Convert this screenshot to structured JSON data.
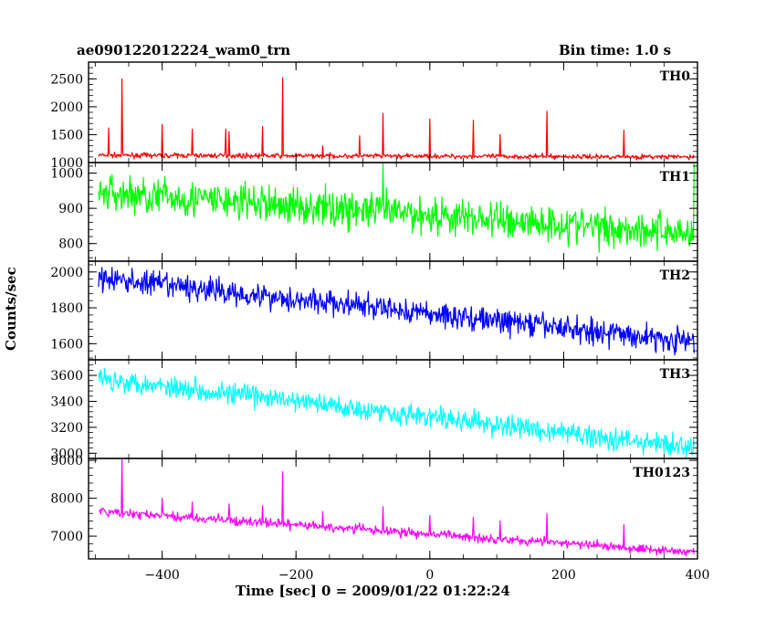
{
  "header": {
    "title": "ae090122012224_wam0_trn",
    "bin_time": "Bin time: 1.0 s"
  },
  "axes": {
    "ylabel": "Counts/sec",
    "xlabel": "Time [sec] 0 = 2009/01/22 01:22:24"
  },
  "chart_data": {
    "type": "line",
    "x_range": [
      -510,
      400
    ],
    "x_ticks": [
      -400,
      -200,
      0,
      200,
      400
    ],
    "x_tick_labels": [
      "−400",
      "−200",
      "0",
      "200",
      "400"
    ],
    "panels": [
      {
        "label": "TH0",
        "color": "#ff0000",
        "ylim": [
          1000,
          2800
        ],
        "yticks": [
          1000,
          1500,
          2000,
          2500
        ],
        "ytick_labels": [
          "1000",
          "1500",
          "2000",
          "2500"
        ],
        "trend": [
          [
            -495,
            1130
          ],
          [
            395,
            1100
          ]
        ],
        "noise": 30,
        "spikes": [
          [
            -480,
            1620
          ],
          [
            -460,
            2500
          ],
          [
            -400,
            1680
          ],
          [
            -355,
            1600
          ],
          [
            -305,
            1600
          ],
          [
            -300,
            1550
          ],
          [
            -250,
            1650
          ],
          [
            -220,
            2520
          ],
          [
            -160,
            1300
          ],
          [
            -105,
            1480
          ],
          [
            -70,
            1880
          ],
          [
            0,
            1780
          ],
          [
            65,
            1760
          ],
          [
            105,
            1500
          ],
          [
            175,
            1920
          ],
          [
            290,
            1580
          ],
          [
            398,
            2800
          ]
        ]
      },
      {
        "label": "TH1",
        "color": "#00ff00",
        "ylim": [
          750,
          1030
        ],
        "yticks": [
          800,
          900,
          1000
        ],
        "ytick_labels": [
          "800",
          "900",
          "1000"
        ],
        "trend": [
          [
            -495,
            945
          ],
          [
            395,
            830
          ]
        ],
        "noise": 38,
        "spikes": [
          [
            -70,
            1030
          ],
          [
            395,
            1030
          ]
        ]
      },
      {
        "label": "TH2",
        "color": "#0000ff",
        "ylim": [
          1510,
          2060
        ],
        "yticks": [
          1600,
          1800,
          2000
        ],
        "ytick_labels": [
          "1600",
          "1800",
          "2000"
        ],
        "trend": [
          [
            -495,
            1965
          ],
          [
            395,
            1610
          ]
        ],
        "noise": 50,
        "spikes": []
      },
      {
        "label": "TH3",
        "color": "#00ffff",
        "ylim": [
          2960,
          3720
        ],
        "yticks": [
          3000,
          3200,
          3400,
          3600
        ],
        "ytick_labels": [
          "3000",
          "3200",
          "3400",
          "3600"
        ],
        "trend": [
          [
            -495,
            3580
          ],
          [
            395,
            3040
          ]
        ],
        "noise": 60,
        "spikes": []
      },
      {
        "label": "TH0123",
        "color": "#ff00ff",
        "ylim": [
          6400,
          9050
        ],
        "yticks": [
          7000,
          8000,
          9000
        ],
        "ytick_labels": [
          "7000",
          "8000",
          "9000"
        ],
        "trend": [
          [
            -495,
            7650
          ],
          [
            395,
            6580
          ]
        ],
        "noise": 85,
        "spikes": [
          [
            -460,
            9050
          ],
          [
            -400,
            8000
          ],
          [
            -355,
            7900
          ],
          [
            -300,
            7850
          ],
          [
            -250,
            7800
          ],
          [
            -220,
            8700
          ],
          [
            -160,
            7650
          ],
          [
            -105,
            7350
          ],
          [
            -70,
            7780
          ],
          [
            0,
            7550
          ],
          [
            65,
            7500
          ],
          [
            105,
            7400
          ],
          [
            175,
            7600
          ],
          [
            290,
            7300
          ],
          [
            398,
            9050
          ]
        ]
      }
    ]
  }
}
